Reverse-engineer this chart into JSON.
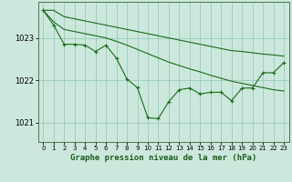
{
  "bg_color": "#cce8dd",
  "grid_color": "#99ccbb",
  "line_color": "#1a6b1a",
  "xlabel": "Graphe pression niveau de la mer (hPa)",
  "xlim": [
    -0.5,
    23.5
  ],
  "ylim": [
    1020.55,
    1023.85
  ],
  "yticks": [
    1021,
    1022,
    1023
  ],
  "xticks": [
    0,
    1,
    2,
    3,
    4,
    5,
    6,
    7,
    8,
    9,
    10,
    11,
    12,
    13,
    14,
    15,
    16,
    17,
    18,
    19,
    20,
    21,
    22,
    23
  ],
  "hours": [
    0,
    1,
    2,
    3,
    4,
    5,
    6,
    7,
    8,
    9,
    10,
    11,
    12,
    13,
    14,
    15,
    16,
    17,
    18,
    19,
    20,
    21,
    22,
    23
  ],
  "trend_upper": [
    1023.65,
    1023.65,
    1023.5,
    1023.45,
    1023.4,
    1023.35,
    1023.3,
    1023.25,
    1023.2,
    1023.15,
    1023.1,
    1023.05,
    1023.0,
    1022.95,
    1022.9,
    1022.85,
    1022.8,
    1022.75,
    1022.7,
    1022.68,
    1022.65,
    1022.62,
    1022.6,
    1022.57
  ],
  "trend_lower": [
    1023.65,
    1023.38,
    1023.2,
    1023.15,
    1023.1,
    1023.05,
    1023.0,
    1022.92,
    1022.83,
    1022.73,
    1022.63,
    1022.53,
    1022.43,
    1022.35,
    1022.27,
    1022.2,
    1022.12,
    1022.05,
    1021.98,
    1021.93,
    1021.88,
    1021.83,
    1021.78,
    1021.75
  ],
  "observed": [
    1023.65,
    1023.3,
    1022.85,
    1022.85,
    1022.83,
    1022.68,
    1022.83,
    1022.52,
    1022.03,
    1021.83,
    1021.12,
    1021.1,
    1021.5,
    1021.78,
    1021.82,
    1021.68,
    1021.72,
    1021.72,
    1021.52,
    1021.82,
    1021.82,
    1022.18,
    1022.18,
    1022.42
  ]
}
